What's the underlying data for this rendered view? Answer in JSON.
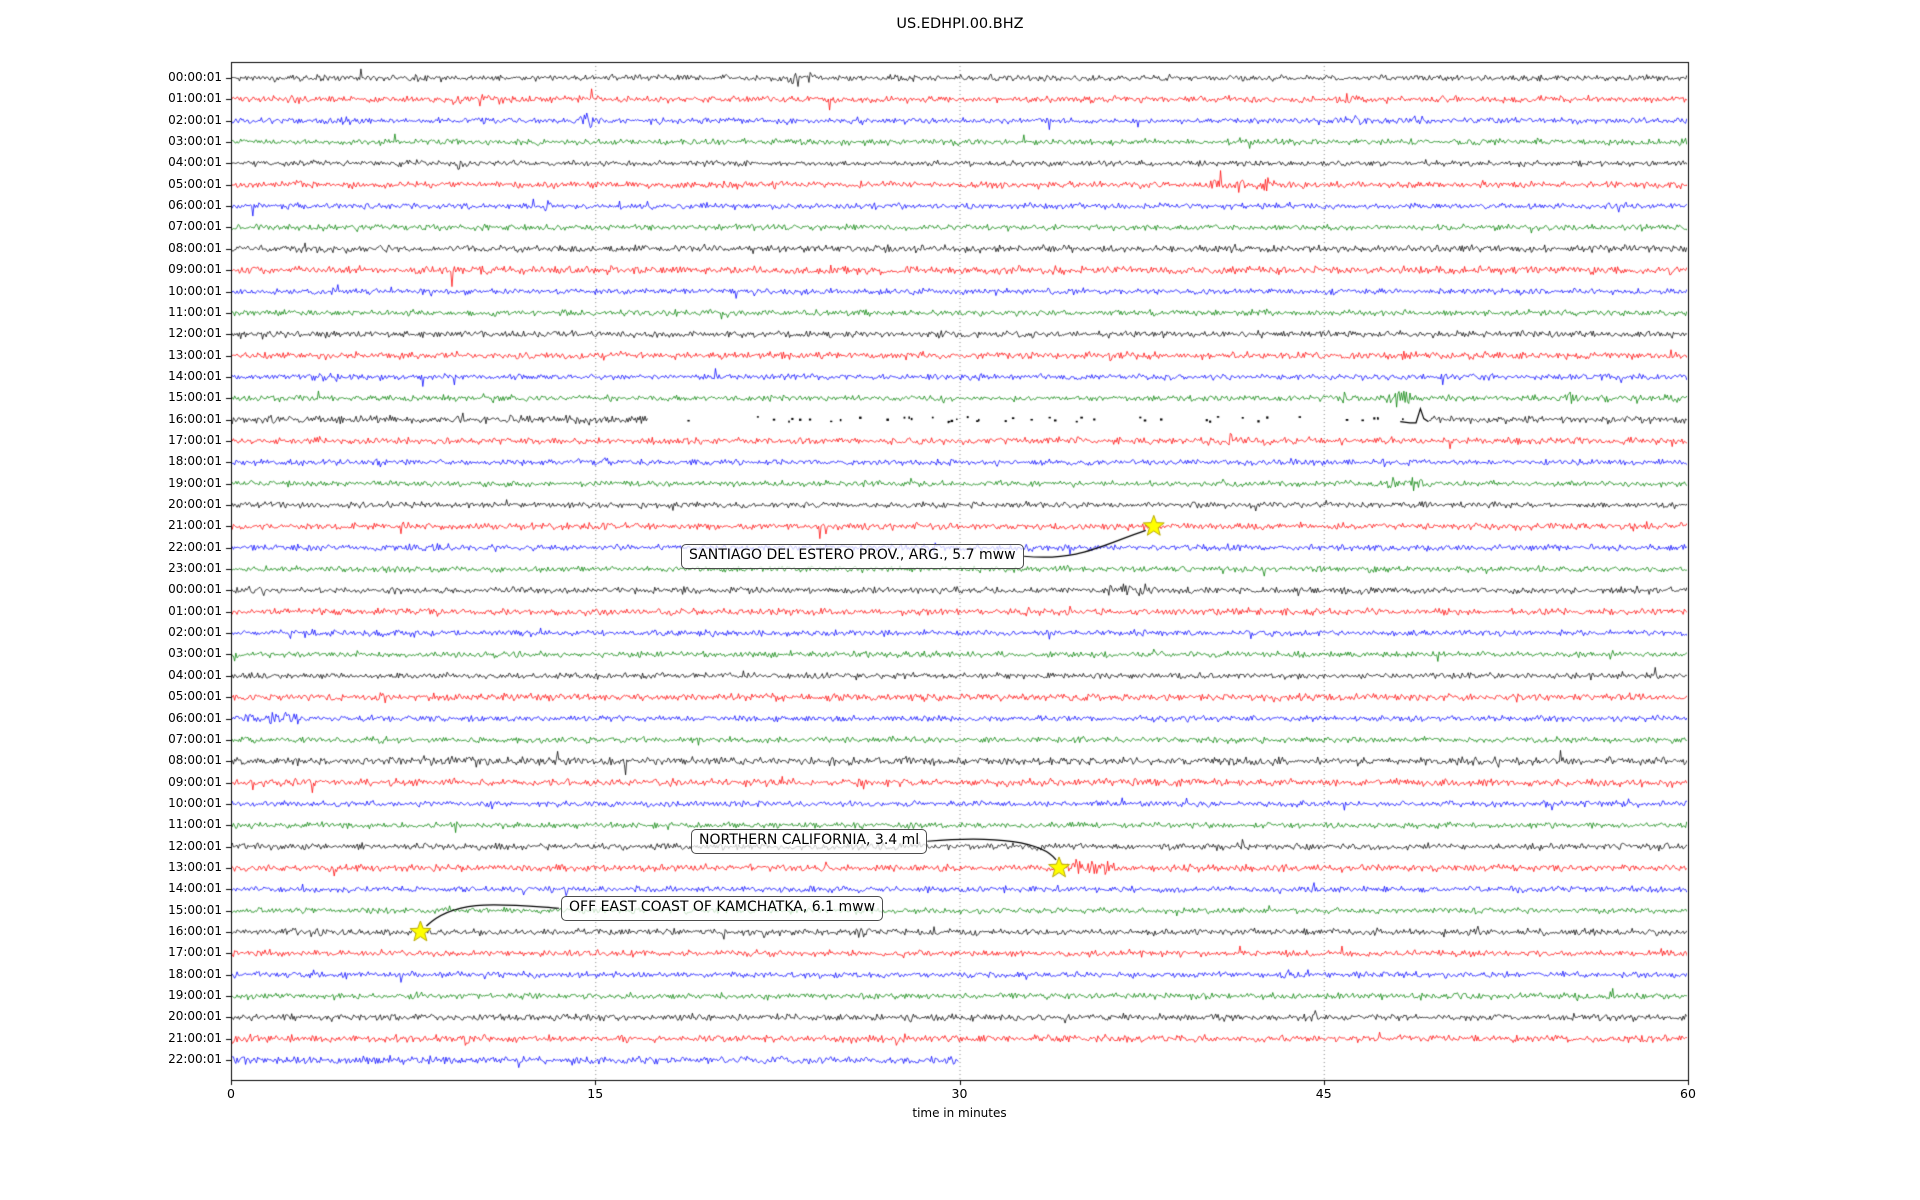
{
  "title": "US.EDHPI.00.BHZ",
  "chart_data": {
    "type": "line",
    "subtype": "helicorder-dayplot",
    "station_id": "US.EDHPI.00.BHZ",
    "xlabel": "time in minutes",
    "xlim": [
      0,
      60
    ],
    "x_ticks": [
      0,
      15,
      30,
      45,
      60
    ],
    "x_gridlines_minutes": [
      15,
      30,
      45
    ],
    "grid_style": "vertical-dotted",
    "trace_color_cycle": [
      "#000000",
      "#ff0000",
      "#0000ff",
      "#008000"
    ],
    "event_marker": {
      "shape": "star",
      "color": "#ffff00"
    },
    "events": [
      {
        "label": "SANTIAGO DEL ESTERO PROV., ARG., 5.7 mww",
        "row_index": 21,
        "row_label": "21:00:01",
        "minute": 38.0
      },
      {
        "label": "NORTHERN CALIFORNIA, 3.4 ml",
        "row_index": 37,
        "row_label": "13:00:01",
        "minute": 34.1
      },
      {
        "label": "OFF EAST COAST OF KAMCHATKA, 6.1 mww",
        "row_index": 40,
        "row_label": "16:00:01",
        "minute": 7.8
      }
    ],
    "gap_row": {
      "row_index": 16,
      "trace_segments_minutes": [
        [
          0,
          17.2
        ],
        [
          49.3,
          60
        ]
      ],
      "dots_range_minutes": [
        18,
        48.3
      ],
      "calibration_pulse_minute": 48.7
    },
    "rows": [
      {
        "label": "00:00:01",
        "color": "#000000",
        "amp": 3.3,
        "bursts": [
          [
            23.3,
            2.8,
            0.15
          ],
          [
            23.9,
            2.2,
            0.12
          ],
          [
            27.4,
            2.6,
            0.15
          ],
          [
            27.9,
            1.8,
            0.12
          ]
        ]
      },
      {
        "label": "01:00:01",
        "color": "#ff0000",
        "amp": 3.6,
        "bursts": [
          [
            2.6,
            1.7,
            0.25
          ],
          [
            9.2,
            3.0,
            0.12
          ],
          [
            10.3,
            2.5,
            0.15
          ],
          [
            11.2,
            2.0,
            0.12
          ],
          [
            45.9,
            2.2,
            0.18
          ]
        ]
      },
      {
        "label": "02:00:01",
        "color": "#0000ff",
        "amp": 3.3,
        "bursts": [
          [
            4.0,
            2.1,
            0.25
          ],
          [
            4.7,
            1.9,
            0.2
          ],
          [
            14.7,
            2.4,
            0.25
          ],
          [
            17.8,
            1.8,
            0.25
          ],
          [
            22.8,
            1.6,
            0.25
          ],
          [
            46.2,
            2.4,
            0.25
          ],
          [
            47.6,
            1.7,
            0.2
          ],
          [
            48.9,
            1.9,
            0.2
          ],
          [
            52.9,
            1.8,
            0.15
          ],
          [
            57.8,
            1.5,
            0.2
          ]
        ]
      },
      {
        "label": "03:00:01",
        "color": "#008000",
        "amp": 3.3,
        "bursts": [
          [
            30.0,
            1.2,
            0.3
          ],
          [
            53.6,
            1.4,
            0.2
          ],
          [
            59.8,
            2.6,
            0.12
          ]
        ]
      },
      {
        "label": "04:00:01",
        "color": "#000000",
        "amp": 3.3,
        "bursts": [
          [
            9.4,
            2.4,
            0.12
          ],
          [
            34.0,
            1.3,
            0.25
          ]
        ]
      },
      {
        "label": "05:00:01",
        "color": "#ff0000",
        "amp": 3.7,
        "bursts": [
          [
            2.8,
            2.1,
            0.15
          ],
          [
            8.4,
            1.6,
            0.15
          ],
          [
            13.2,
            1.5,
            0.1
          ],
          [
            40.6,
            2.1,
            0.3
          ],
          [
            41.6,
            2.4,
            0.3
          ],
          [
            42.6,
            2.0,
            0.25
          ],
          [
            43.4,
            1.7,
            0.2
          ]
        ]
      },
      {
        "label": "06:00:01",
        "color": "#0000ff",
        "amp": 3.3,
        "bursts": [
          [
            17.0,
            1.3,
            0.3
          ],
          [
            44.9,
            1.3,
            0.2
          ]
        ]
      },
      {
        "label": "07:00:01",
        "color": "#008000",
        "amp": 3.3,
        "bursts": [
          [
            12.0,
            1.3,
            0.3
          ],
          [
            21.0,
            1.25,
            0.3
          ]
        ]
      },
      {
        "label": "08:00:01",
        "color": "#000000",
        "amp": 4.0,
        "bursts": []
      },
      {
        "label": "09:00:01",
        "color": "#ff0000",
        "amp": 4.4,
        "bursts": []
      },
      {
        "label": "10:00:01",
        "color": "#0000ff",
        "amp": 3.3,
        "bursts": [
          [
            4.0,
            1.3,
            0.3
          ],
          [
            33.0,
            1.25,
            0.3
          ]
        ]
      },
      {
        "label": "11:00:01",
        "color": "#008000",
        "amp": 3.3,
        "bursts": [
          [
            8.0,
            1.25,
            0.3
          ]
        ]
      },
      {
        "label": "12:00:01",
        "color": "#000000",
        "amp": 3.7,
        "bursts": [
          [
            9.5,
            1.3,
            0.2
          ]
        ]
      },
      {
        "label": "13:00:01",
        "color": "#ff0000",
        "amp": 4.0,
        "bursts": [
          [
            23.0,
            1.25,
            0.3
          ]
        ]
      },
      {
        "label": "14:00:01",
        "color": "#0000ff",
        "amp": 3.3,
        "bursts": [
          [
            3.5,
            1.6,
            0.45
          ],
          [
            4.6,
            1.5,
            0.35
          ],
          [
            9.0,
            1.35,
            0.3
          ],
          [
            31.0,
            1.3,
            0.3
          ]
        ]
      },
      {
        "label": "15:00:01",
        "color": "#008000",
        "amp": 3.3,
        "bursts": [
          [
            11.0,
            1.35,
            0.3
          ],
          [
            40.0,
            1.4,
            0.2
          ],
          [
            45.8,
            1.9,
            0.2
          ],
          [
            47.9,
            3.2,
            0.25
          ],
          [
            48.5,
            2.4,
            0.25
          ],
          [
            53.6,
            1.8,
            0.2
          ],
          [
            55.2,
            2.0,
            0.2
          ],
          [
            56.6,
            1.8,
            0.2
          ],
          [
            58.1,
            1.9,
            0.2
          ],
          [
            59.3,
            1.8,
            0.2
          ]
        ]
      },
      {
        "label": "16:00:01",
        "color": "#000000",
        "amp": 4.0,
        "bursts": [
          [
            6.5,
            1.4,
            0.3
          ],
          [
            10.5,
            1.7,
            0.25
          ],
          [
            14.0,
            1.5,
            0.3
          ]
        ],
        "segments": [
          [
            0,
            17.2
          ],
          [
            49.3,
            60
          ]
        ],
        "dots": [
          18,
          48.3
        ],
        "pulse": 48.7
      },
      {
        "label": "17:00:01",
        "color": "#ff0000",
        "amp": 3.7,
        "bursts": [
          [
            3.5,
            1.5,
            0.2
          ],
          [
            6.3,
            1.8,
            0.15
          ],
          [
            28.4,
            1.5,
            0.1
          ],
          [
            34.9,
            2.4,
            0.08
          ],
          [
            40.3,
            2.6,
            0.2
          ],
          [
            41.2,
            2.1,
            0.2
          ],
          [
            42.6,
            1.6,
            0.15
          ],
          [
            48.0,
            1.4,
            0.15
          ]
        ]
      },
      {
        "label": "18:00:01",
        "color": "#0000ff",
        "amp": 3.3,
        "bursts": [
          [
            6.1,
            1.5,
            0.25
          ],
          [
            15.3,
            1.6,
            0.2
          ],
          [
            47.5,
            1.4,
            0.2
          ],
          [
            59.0,
            1.5,
            0.15
          ]
        ]
      },
      {
        "label": "19:00:01",
        "color": "#008000",
        "amp": 3.3,
        "bursts": [
          [
            11.5,
            1.4,
            0.3
          ],
          [
            48.0,
            2.5,
            0.3
          ],
          [
            48.8,
            2.1,
            0.25
          ]
        ]
      },
      {
        "label": "20:00:01",
        "color": "#000000",
        "amp": 3.4,
        "bursts": [
          [
            9.8,
            1.4,
            0.2
          ],
          [
            17.0,
            1.35,
            0.3
          ],
          [
            29.0,
            1.35,
            0.2
          ],
          [
            41.0,
            1.3,
            0.3
          ]
        ]
      },
      {
        "label": "21:00:01",
        "color": "#ff0000",
        "amp": 3.7,
        "bursts": [
          [
            30.5,
            1.4,
            0.15
          ],
          [
            36.0,
            1.35,
            0.2
          ],
          [
            39.5,
            2.1,
            0.08
          ],
          [
            42.0,
            1.35,
            0.15
          ],
          [
            51.5,
            1.4,
            0.15
          ],
          [
            58.3,
            1.9,
            0.12
          ]
        ]
      },
      {
        "label": "22:00:01",
        "color": "#0000ff",
        "amp": 3.4,
        "bursts": [
          [
            8.4,
            2.1,
            0.25
          ],
          [
            9.2,
            1.7,
            0.2
          ],
          [
            28.9,
            1.4,
            0.15
          ],
          [
            41.0,
            1.3,
            0.3
          ]
        ]
      },
      {
        "label": "23:00:01",
        "color": "#008000",
        "amp": 3.3,
        "bursts": [
          [
            34.5,
            1.4,
            0.25
          ],
          [
            41.0,
            1.35,
            0.2
          ],
          [
            47.0,
            1.35,
            0.3
          ]
        ]
      },
      {
        "label": "00:00:01",
        "color": "#000000",
        "amp": 3.6,
        "bursts": [
          [
            30.0,
            1.4,
            0.2
          ],
          [
            36.4,
            2.1,
            0.3
          ],
          [
            37.1,
            2.4,
            0.25
          ],
          [
            37.8,
            1.8,
            0.2
          ],
          [
            44.0,
            1.35,
            0.2
          ]
        ]
      },
      {
        "label": "01:00:01",
        "color": "#ff0000",
        "amp": 3.7,
        "bursts": [
          [
            6.1,
            2.5,
            0.2
          ],
          [
            6.9,
            2.2,
            0.2
          ],
          [
            8.1,
            1.8,
            0.25
          ],
          [
            23.0,
            1.3,
            0.3
          ]
        ]
      },
      {
        "label": "02:00:01",
        "color": "#0000ff",
        "amp": 3.3,
        "bursts": [
          [
            3.0,
            1.5,
            0.3
          ],
          [
            7.5,
            1.35,
            0.3
          ],
          [
            18.0,
            1.3,
            0.3
          ]
        ]
      },
      {
        "label": "03:00:01",
        "color": "#008000",
        "amp": 3.3,
        "bursts": []
      },
      {
        "label": "04:00:01",
        "color": "#000000",
        "amp": 3.3,
        "bursts": [
          [
            26.0,
            1.3,
            0.3
          ]
        ]
      },
      {
        "label": "05:00:01",
        "color": "#ff0000",
        "amp": 4.0,
        "bursts": [
          [
            43.2,
            1.5,
            0.1
          ],
          [
            53.0,
            2.0,
            0.12
          ],
          [
            57.6,
            1.9,
            0.12
          ]
        ]
      },
      {
        "label": "06:00:01",
        "color": "#0000ff",
        "amp": 3.3,
        "bursts": [
          [
            0.9,
            2.2,
            0.3
          ],
          [
            1.7,
            2.4,
            0.35
          ],
          [
            2.5,
            2.0,
            0.3
          ]
        ]
      },
      {
        "label": "07:00:01",
        "color": "#008000",
        "amp": 3.3,
        "bursts": []
      },
      {
        "label": "08:00:01",
        "color": "#000000",
        "amp": 4.4,
        "bursts": []
      },
      {
        "label": "09:00:01",
        "color": "#ff0000",
        "amp": 4.2,
        "bursts": []
      },
      {
        "label": "10:00:01",
        "color": "#0000ff",
        "amp": 3.3,
        "bursts": [
          [
            21.0,
            1.25,
            0.3
          ]
        ]
      },
      {
        "label": "11:00:01",
        "color": "#008000",
        "amp": 3.3,
        "bursts": [
          [
            26.0,
            1.25,
            0.3
          ]
        ]
      },
      {
        "label": "12:00:01",
        "color": "#000000",
        "amp": 3.7,
        "bursts": [
          [
            20.4,
            1.3,
            0.2
          ],
          [
            33.0,
            1.35,
            0.2
          ]
        ]
      },
      {
        "label": "13:00:01",
        "color": "#ff0000",
        "amp": 4.0,
        "bursts": [
          [
            34.8,
            2.3,
            0.2
          ],
          [
            35.4,
            2.7,
            0.25
          ],
          [
            36.1,
            2.0,
            0.2
          ]
        ]
      },
      {
        "label": "14:00:01",
        "color": "#0000ff",
        "amp": 3.3,
        "bursts": [
          [
            4.0,
            1.4,
            0.3
          ],
          [
            44.0,
            1.35,
            0.2
          ]
        ]
      },
      {
        "label": "15:00:01",
        "color": "#008000",
        "amp": 3.3,
        "bursts": []
      },
      {
        "label": "16:00:01",
        "color": "#000000",
        "amp": 3.5,
        "bursts": [
          [
            2.7,
            2.3,
            0.2
          ],
          [
            3.4,
            2.0,
            0.2
          ],
          [
            5.5,
            1.5,
            0.15
          ],
          [
            26.0,
            1.8,
            0.25
          ],
          [
            28.9,
            1.6,
            0.2
          ],
          [
            30.4,
            1.5,
            0.2
          ],
          [
            36.5,
            1.35,
            0.2
          ],
          [
            37.9,
            1.6,
            0.1
          ],
          [
            47.0,
            1.35,
            0.2
          ],
          [
            53.8,
            1.7,
            0.08
          ]
        ]
      },
      {
        "label": "17:00:01",
        "color": "#ff0000",
        "amp": 3.4,
        "bursts": [
          [
            1.5,
            1.5,
            0.12
          ],
          [
            9.7,
            1.4,
            0.12
          ],
          [
            14.3,
            1.7,
            0.1
          ],
          [
            21.4,
            1.5,
            0.1
          ],
          [
            59.0,
            1.4,
            0.15
          ]
        ]
      },
      {
        "label": "18:00:01",
        "color": "#0000ff",
        "amp": 3.3,
        "bursts": [
          [
            3.5,
            1.5,
            0.2
          ],
          [
            4.6,
            1.45,
            0.2
          ],
          [
            12.7,
            1.7,
            0.15
          ],
          [
            43.5,
            1.45,
            0.2
          ],
          [
            52.5,
            1.4,
            0.2
          ]
        ]
      },
      {
        "label": "19:00:01",
        "color": "#008000",
        "amp": 3.3,
        "bursts": [
          [
            4.4,
            1.45,
            0.2
          ],
          [
            7.6,
            1.4,
            0.2
          ],
          [
            12.4,
            1.9,
            0.2
          ],
          [
            20.2,
            1.7,
            0.1
          ],
          [
            26.6,
            1.5,
            0.2
          ],
          [
            47.0,
            1.35,
            0.3
          ],
          [
            55.0,
            1.3,
            0.2
          ]
        ]
      },
      {
        "label": "20:00:01",
        "color": "#000000",
        "amp": 3.7,
        "bursts": [
          [
            2.8,
            1.4,
            0.15
          ],
          [
            6.7,
            1.5,
            0.1
          ],
          [
            9.5,
            1.45,
            0.1
          ],
          [
            25.8,
            1.8,
            0.1
          ],
          [
            28.0,
            1.6,
            0.12
          ],
          [
            29.1,
            1.45,
            0.12
          ],
          [
            44.7,
            1.8,
            0.08
          ],
          [
            55.3,
            1.5,
            0.1
          ]
        ]
      },
      {
        "label": "21:00:01",
        "color": "#ff0000",
        "amp": 3.9,
        "bursts": [
          [
            0.5,
            1.9,
            0.2
          ],
          [
            9.7,
            2.2,
            0.1
          ],
          [
            21.3,
            1.6,
            0.12
          ],
          [
            34.0,
            1.35,
            0.2
          ],
          [
            48.2,
            1.7,
            0.12
          ],
          [
            59.2,
            1.5,
            0.15
          ]
        ]
      },
      {
        "label": "22:00:01",
        "color": "#0000ff",
        "amp": 4.3,
        "bursts": [
          [
            5.0,
            1.3,
            0.3
          ],
          [
            14.0,
            1.25,
            0.3
          ]
        ],
        "segments": [
          [
            0,
            30
          ]
        ]
      }
    ]
  }
}
